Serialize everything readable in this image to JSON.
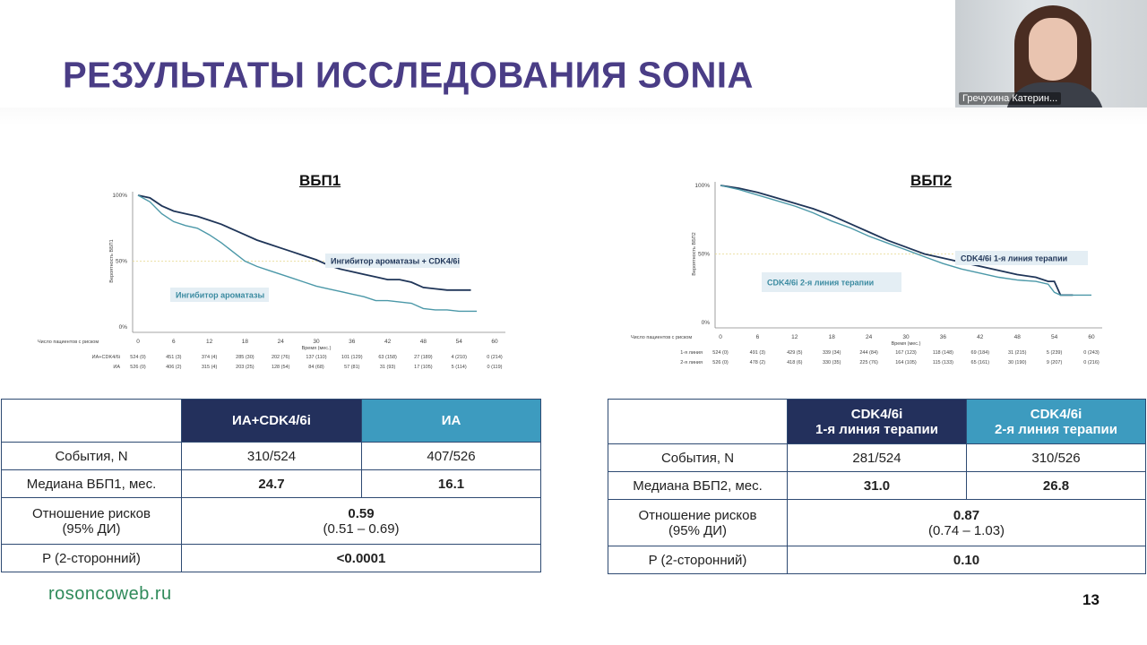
{
  "slide": {
    "title": "РЕЗУЛЬТАТЫ ИССЛЕДОВАНИЯ SONIA",
    "footer_url": "rosoncoweb.ru",
    "page_number": "13"
  },
  "webcam": {
    "participant_name": "Гречухина Катерин..."
  },
  "chart_data": [
    {
      "type": "line",
      "title": "ВБП1",
      "ylabel": "Вероятность ВБП1",
      "xlabel": "Время (мес.)",
      "y_ticks": [
        "100%",
        "50%",
        "0%"
      ],
      "x": [
        0,
        6,
        12,
        18,
        24,
        30,
        36,
        42,
        48,
        54,
        60
      ],
      "xlim": [
        0,
        60
      ],
      "ylim": [
        0,
        100
      ],
      "series": [
        {
          "name": "Ингибитор ароматазы + CDK4/6i",
          "color": "#1f3558",
          "points": [
            [
              0,
              100
            ],
            [
              2,
              98
            ],
            [
              4,
              92
            ],
            [
              6,
              88
            ],
            [
              8,
              86
            ],
            [
              10,
              84
            ],
            [
              12,
              81
            ],
            [
              14,
              78
            ],
            [
              16,
              74
            ],
            [
              18,
              70
            ],
            [
              20,
              66
            ],
            [
              22,
              63
            ],
            [
              24,
              60
            ],
            [
              26,
              57
            ],
            [
              28,
              54
            ],
            [
              30,
              51
            ],
            [
              32,
              47
            ],
            [
              34,
              44
            ],
            [
              36,
              42
            ],
            [
              38,
              40
            ],
            [
              40,
              38
            ],
            [
              42,
              36
            ],
            [
              44,
              36
            ],
            [
              46,
              34
            ],
            [
              48,
              30
            ],
            [
              50,
              29
            ],
            [
              52,
              28
            ],
            [
              54,
              28
            ],
            [
              56,
              28
            ]
          ]
        },
        {
          "name": "Ингибитор ароматазы",
          "color": "#4b98a8",
          "points": [
            [
              0,
              100
            ],
            [
              2,
              95
            ],
            [
              4,
              86
            ],
            [
              6,
              80
            ],
            [
              8,
              77
            ],
            [
              10,
              75
            ],
            [
              12,
              70
            ],
            [
              14,
              64
            ],
            [
              16,
              57
            ],
            [
              18,
              50
            ],
            [
              20,
              46
            ],
            [
              22,
              43
            ],
            [
              24,
              40
            ],
            [
              26,
              37
            ],
            [
              28,
              34
            ],
            [
              30,
              31
            ],
            [
              32,
              29
            ],
            [
              34,
              27
            ],
            [
              36,
              25
            ],
            [
              38,
              23
            ],
            [
              40,
              20
            ],
            [
              42,
              20
            ],
            [
              44,
              19
            ],
            [
              46,
              18
            ],
            [
              48,
              14
            ],
            [
              50,
              13
            ],
            [
              52,
              13
            ],
            [
              54,
              12
            ],
            [
              57,
              12
            ]
          ]
        }
      ],
      "risk_table": {
        "label": "Число пациентов с риском",
        "rows": [
          {
            "label": "ИА+CDK4/6i",
            "values": [
              "524 (0)",
              "451 (3)",
              "374 (4)",
              "285 (30)",
              "202 (76)",
              "137 (110)",
              "101 (129)",
              "63 (158)",
              "27 (189)",
              "4 (210)",
              "0 (214)"
            ]
          },
          {
            "label": "ИА",
            "values": [
              "526 (0)",
              "406 (2)",
              "315 (4)",
              "203 (25)",
              "128 (54)",
              "84 (68)",
              "57 (81)",
              "31 (93)",
              "17 (105)",
              "5 (114)",
              "0 (119)"
            ]
          }
        ]
      }
    },
    {
      "type": "line",
      "title": "ВБП2",
      "ylabel": "Вероятность ВБП2",
      "xlabel": "Время (мес.)",
      "y_ticks": [
        "100%",
        "50%",
        "0%"
      ],
      "x": [
        0,
        6,
        12,
        18,
        24,
        30,
        36,
        42,
        48,
        54,
        60
      ],
      "xlim": [
        0,
        60
      ],
      "ylim": [
        0,
        100
      ],
      "series": [
        {
          "name": "CDK4/6i 1-я линия терапии",
          "color": "#1f3558",
          "points": [
            [
              0,
              100
            ],
            [
              3,
              98
            ],
            [
              6,
              95
            ],
            [
              9,
              91
            ],
            [
              12,
              87
            ],
            [
              15,
              83
            ],
            [
              18,
              78
            ],
            [
              21,
              72
            ],
            [
              24,
              66
            ],
            [
              27,
              60
            ],
            [
              30,
              55
            ],
            [
              33,
              50
            ],
            [
              36,
              47
            ],
            [
              39,
              44
            ],
            [
              42,
              41
            ],
            [
              45,
              38
            ],
            [
              48,
              35
            ],
            [
              51,
              33
            ],
            [
              53,
              30
            ],
            [
              54,
              30
            ],
            [
              55,
              20
            ],
            [
              57,
              20
            ]
          ]
        },
        {
          "name": "CDK4/6i 2-я линия терапии",
          "color": "#4b98a8",
          "points": [
            [
              0,
              100
            ],
            [
              3,
              97
            ],
            [
              6,
              93
            ],
            [
              9,
              89
            ],
            [
              12,
              85
            ],
            [
              15,
              80
            ],
            [
              18,
              74
            ],
            [
              21,
              69
            ],
            [
              24,
              63
            ],
            [
              27,
              58
            ],
            [
              30,
              53
            ],
            [
              33,
              48
            ],
            [
              36,
              43
            ],
            [
              39,
              39
            ],
            [
              42,
              36
            ],
            [
              45,
              33
            ],
            [
              48,
              31
            ],
            [
              51,
              30
            ],
            [
              53,
              28
            ],
            [
              54,
              22
            ],
            [
              55,
              20
            ],
            [
              60,
              20
            ]
          ]
        }
      ],
      "risk_table": {
        "label": "Число пациентов с риском",
        "rows": [
          {
            "label": "1-я линия",
            "values": [
              "524 (0)",
              "491 (3)",
              "429 (5)",
              "339 (34)",
              "244 (84)",
              "167 (123)",
              "118 (148)",
              "69 (184)",
              "31 (215)",
              "5 (239)",
              "0 (243)"
            ]
          },
          {
            "label": "2-я линия",
            "values": [
              "526 (0)",
              "478 (2)",
              "418 (6)",
              "330 (35)",
              "225 (76)",
              "164 (105)",
              "115 (133)",
              "65 (161)",
              "30 (190)",
              "9 (207)",
              "0 (216)"
            ]
          }
        ]
      }
    }
  ],
  "table1": {
    "col1": "ИА+CDK4/6i",
    "col2": "ИА",
    "rows": [
      {
        "label": "События, N",
        "v1": "310/524",
        "v2": "407/526"
      },
      {
        "label": "Медиана ВБП1, мес.",
        "v1": "24.7",
        "v2": "16.1"
      }
    ],
    "hr_label_1": "Отношение рисков",
    "hr_label_2": "(95% ДИ)",
    "hr_value": "0.59",
    "hr_ci": "(0.51 – 0.69)",
    "p_label": "P (2-сторонний)",
    "p_value": "<0.0001"
  },
  "table2": {
    "col1_line1": "CDK4/6i",
    "col1_line2": "1-я линия терапии",
    "col2_line1": "CDK4/6i",
    "col2_line2": "2-я линия терапии",
    "rows": [
      {
        "label": "События, N",
        "v1": "281/524",
        "v2": "310/526"
      },
      {
        "label": "Медиана ВБП2, мес.",
        "v1": "31.0",
        "v2": "26.8"
      }
    ],
    "hr_label_1": "Отношение рисков",
    "hr_label_2": "(95% ДИ)",
    "hr_value": "0.87",
    "hr_ci": "(0.74 – 1.03)",
    "p_label": "P (2-сторонний)",
    "p_value": "0.10"
  }
}
